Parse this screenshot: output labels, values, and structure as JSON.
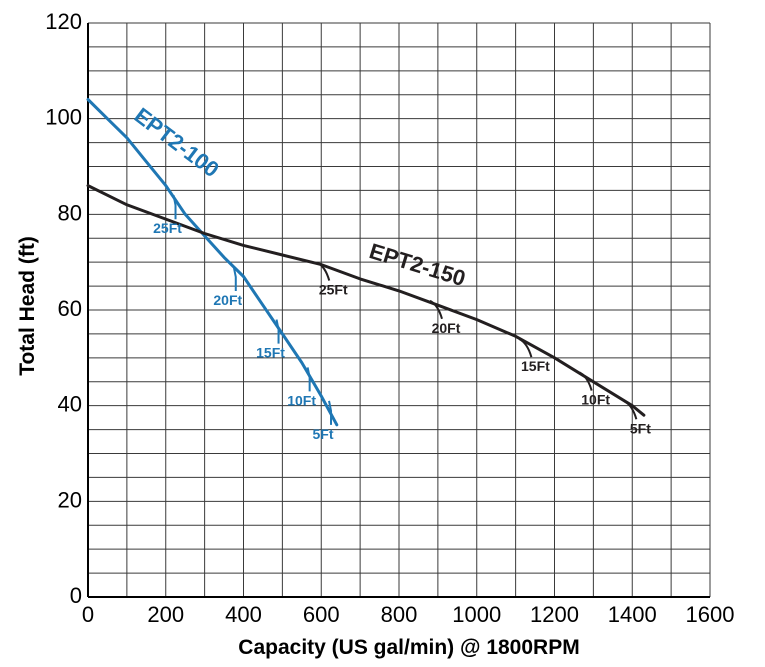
{
  "chart_data": {
    "type": "line",
    "xlabel": "Capacity (US gal/min) @ 1800RPM",
    "ylabel": "Total Head (ft)",
    "xlim": [
      0,
      1600
    ],
    "ylim": [
      0,
      120
    ],
    "xticks": [
      0,
      200,
      400,
      600,
      800,
      1000,
      1200,
      1400,
      1600
    ],
    "yticks": [
      0,
      20,
      40,
      60,
      80,
      100,
      120
    ],
    "grid": true,
    "minor_grid": {
      "x_step": 100,
      "y_step": 5
    },
    "series": [
      {
        "name": "EPT2-100",
        "color": "#1f77b4",
        "x": [
          0,
          50,
          100,
          150,
          200,
          250,
          300,
          350,
          400,
          450,
          500,
          550,
          600,
          640
        ],
        "y": [
          104,
          100,
          96,
          91,
          86,
          80,
          75.5,
          71,
          67,
          61,
          55,
          49,
          42,
          36
        ],
        "npsh": [
          {
            "label": "25Ft",
            "x": 220,
            "y": 84
          },
          {
            "label": "20Ft",
            "x": 375,
            "y": 69
          },
          {
            "label": "15Ft",
            "x": 485,
            "y": 58
          },
          {
            "label": "10Ft",
            "x": 565,
            "y": 48
          },
          {
            "label": "5Ft",
            "x": 620,
            "y": 41
          }
        ]
      },
      {
        "name": "EPT2-150",
        "color": "#231f20",
        "x": [
          0,
          100,
          200,
          300,
          400,
          500,
          600,
          700,
          800,
          900,
          1000,
          1100,
          1200,
          1300,
          1400,
          1430
        ],
        "y": [
          86,
          82,
          79,
          76,
          73.5,
          71.5,
          69.5,
          66.5,
          64,
          61,
          58,
          54.5,
          50,
          45,
          40,
          38
        ],
        "npsh": [
          {
            "label": "25Ft",
            "x": 600,
            "y": 69.5
          },
          {
            "label": "20Ft",
            "x": 890,
            "y": 61.5
          },
          {
            "label": "15Ft",
            "x": 1120,
            "y": 53.5
          },
          {
            "label": "10Ft",
            "x": 1275,
            "y": 46.5
          },
          {
            "label": "5Ft",
            "x": 1390,
            "y": 40.5
          }
        ]
      }
    ]
  }
}
